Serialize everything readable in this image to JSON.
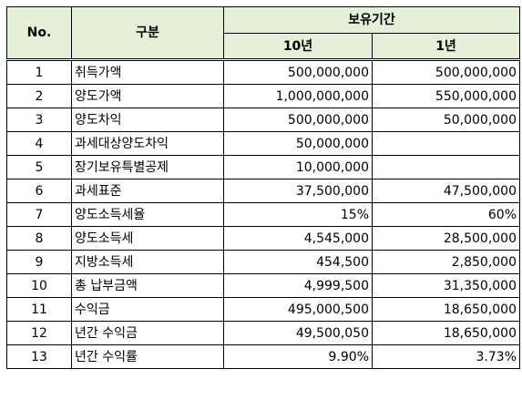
{
  "header": {
    "no": "No.",
    "category": "구분",
    "holding_period": "보유기간",
    "ten_year": "10년",
    "one_year": "1년"
  },
  "rows": [
    {
      "no": "1",
      "label": "취득가액",
      "ten": "500,000,000",
      "one": "500,000,000"
    },
    {
      "no": "2",
      "label": "양도가액",
      "ten": "1,000,000,000",
      "one": "550,000,000"
    },
    {
      "no": "3",
      "label": "양도차익",
      "ten": "500,000,000",
      "one": "50,000,000"
    },
    {
      "no": "4",
      "label": "과세대상양도차익",
      "ten": "50,000,000",
      "one": ""
    },
    {
      "no": "5",
      "label": "장기보유특별공제",
      "ten": "10,000,000",
      "one": ""
    },
    {
      "no": "6",
      "label": "과세표준",
      "ten": "37,500,000",
      "one": "47,500,000"
    },
    {
      "no": "7",
      "label": "양도소득세율",
      "ten": "15%",
      "one": "60%"
    },
    {
      "no": "8",
      "label": "양도소득세",
      "ten": "4,545,000",
      "one": "28,500,000"
    },
    {
      "no": "9",
      "label": "지방소득세",
      "ten": "454,500",
      "one": "2,850,000"
    },
    {
      "no": "10",
      "label": "총 납부금액",
      "ten": "4,999,500",
      "one": "31,350,000"
    },
    {
      "no": "11",
      "label": "수익금",
      "ten": "495,000,500",
      "one": "18,650,000"
    },
    {
      "no": "12",
      "label": "년간 수익금",
      "ten": "49,500,050",
      "one": "18,650,000"
    },
    {
      "no": "13",
      "label": "년간 수익률",
      "ten": "9.90%",
      "one": "3.73%"
    }
  ]
}
